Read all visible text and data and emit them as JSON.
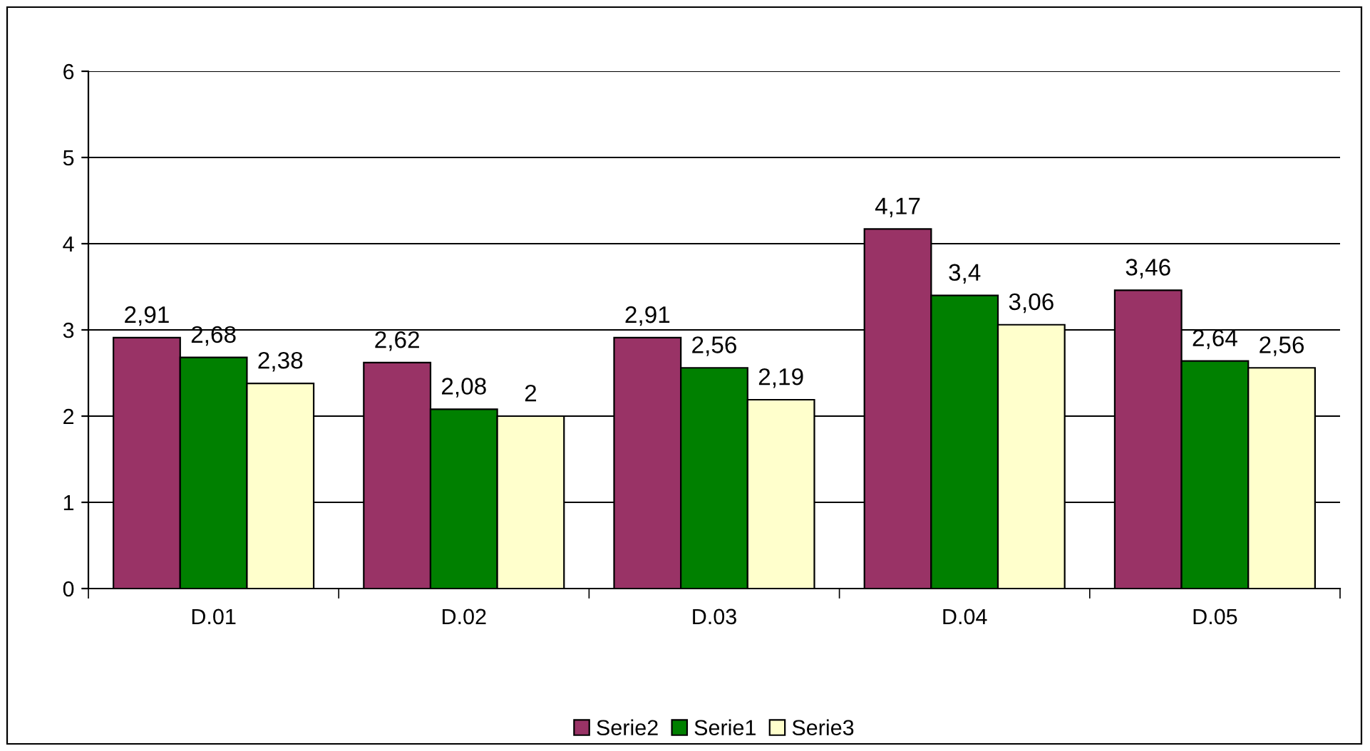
{
  "chart_data": {
    "type": "bar",
    "categories": [
      "D.01",
      "D.02",
      "D.03",
      "D.04",
      "D.05"
    ],
    "series": [
      {
        "name": "Serie2",
        "color": "#993366",
        "values": [
          2.91,
          2.62,
          2.91,
          4.17,
          3.46
        ],
        "value_labels": [
          "2,91",
          "2,62",
          "2,91",
          "4,17",
          "3,46"
        ]
      },
      {
        "name": "Serie1",
        "color": "#008000",
        "values": [
          2.68,
          2.08,
          2.56,
          3.4,
          2.64
        ],
        "value_labels": [
          "2,68",
          "2,08",
          "2,56",
          "3,4",
          "2,64"
        ]
      },
      {
        "name": "Serie3",
        "color": "#ffffcc",
        "values": [
          2.38,
          2,
          2.19,
          3.06,
          2.56
        ],
        "value_labels": [
          "2,38",
          "2",
          "2,19",
          "3,06",
          "2,56"
        ]
      }
    ],
    "ylim": [
      0,
      6
    ],
    "yticks": [
      0,
      1,
      2,
      3,
      4,
      5,
      6
    ],
    "grid": "y",
    "legend": "bottom"
  }
}
